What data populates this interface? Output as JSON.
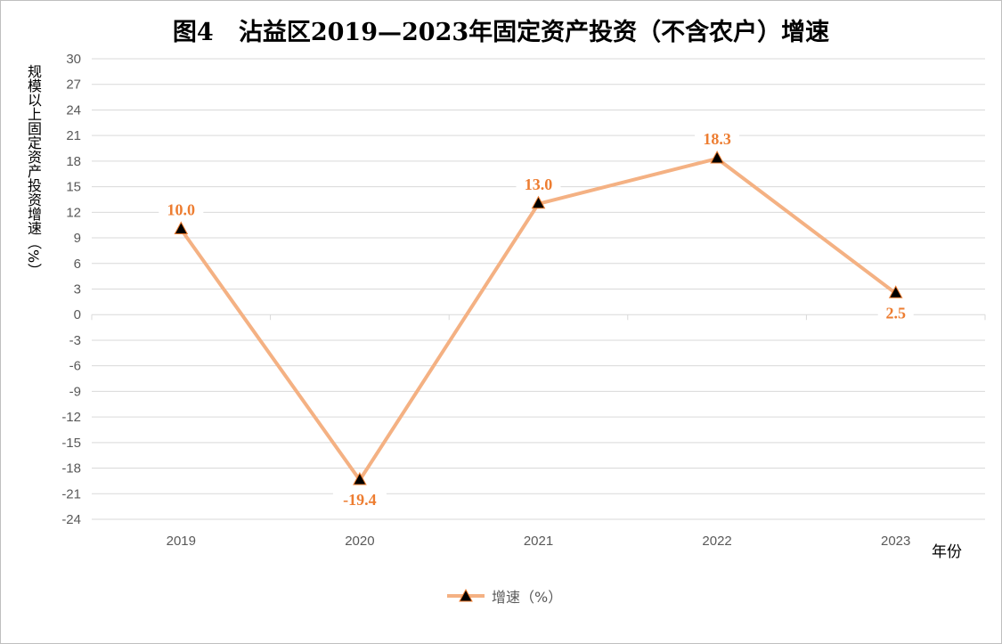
{
  "title": "图4   沾益区2019—2023年固定资产投资（不含农户）增速",
  "colors": {
    "line": "#f4b183",
    "label": "#ed7d31",
    "marker": "#000000",
    "grid": "#d9d9d9"
  },
  "chart_data": {
    "type": "line",
    "title": "图4   沾益区2019—2023年固定资产投资（不含农户）增速",
    "xlabel": "年份",
    "ylabel": "规模以上固定资产投资增速（%）",
    "categories": [
      "2019",
      "2020",
      "2021",
      "2022",
      "2023"
    ],
    "series": [
      {
        "name": "增速（%）",
        "values": [
          10.0,
          -19.4,
          13.0,
          18.3,
          2.5
        ],
        "marker": "triangle"
      }
    ],
    "data_labels": [
      "10.0",
      "-19.4",
      "13.0",
      "18.3",
      "2.5"
    ],
    "ylim": [
      -24,
      30
    ],
    "yticks": [
      30,
      27,
      24,
      21,
      18,
      15,
      12,
      9,
      6,
      3,
      0,
      -3,
      -6,
      -9,
      -12,
      -15,
      -18,
      -21,
      -24
    ],
    "grid": true,
    "legend": "bottom"
  }
}
